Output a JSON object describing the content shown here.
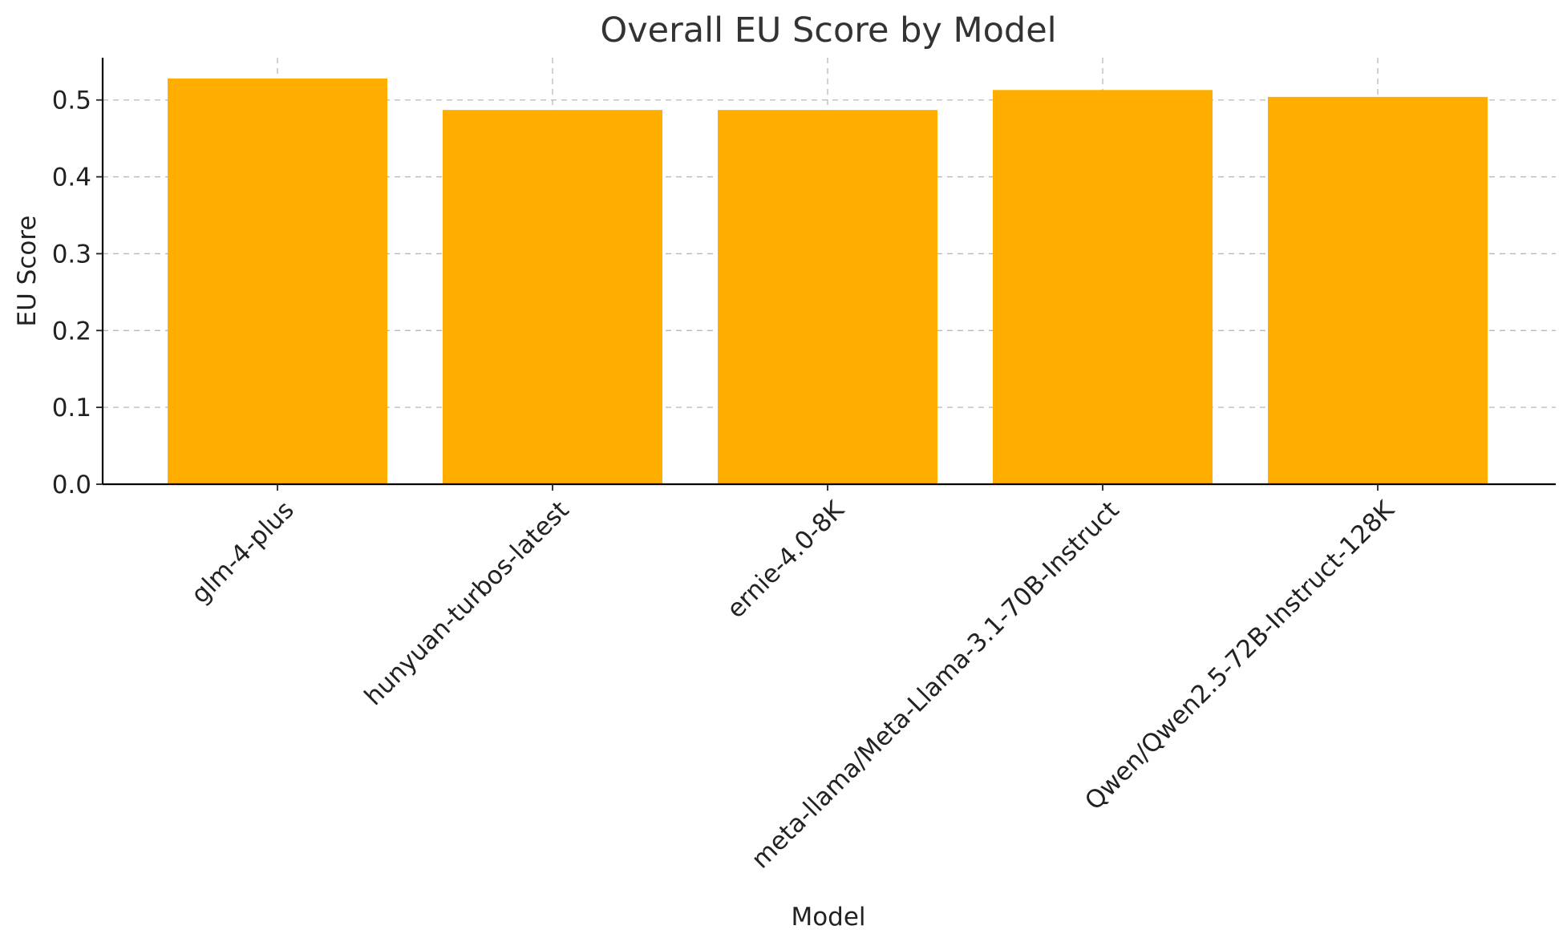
{
  "chart_data": {
    "type": "bar",
    "title": "Overall EU Score by Model",
    "xlabel": "Model",
    "ylabel": "EU Score",
    "categories": [
      "glm-4-plus",
      "hunyuan-turbos-latest",
      "ernie-4.0-8K",
      "meta-llama/Meta-Llama-3.1-70B-Instruct",
      "Qwen/Qwen2.5-72B-Instruct-128K"
    ],
    "values": [
      0.528,
      0.487,
      0.487,
      0.513,
      0.504
    ],
    "ylim": [
      0,
      0.555
    ],
    "yticks": [
      0.0,
      0.1,
      0.2,
      0.3,
      0.4,
      0.5
    ],
    "ytick_labels": [
      "0.0",
      "0.1",
      "0.2",
      "0.3",
      "0.4",
      "0.5"
    ],
    "grid": true,
    "bar_color": "#FFAE00",
    "legend": "none"
  }
}
